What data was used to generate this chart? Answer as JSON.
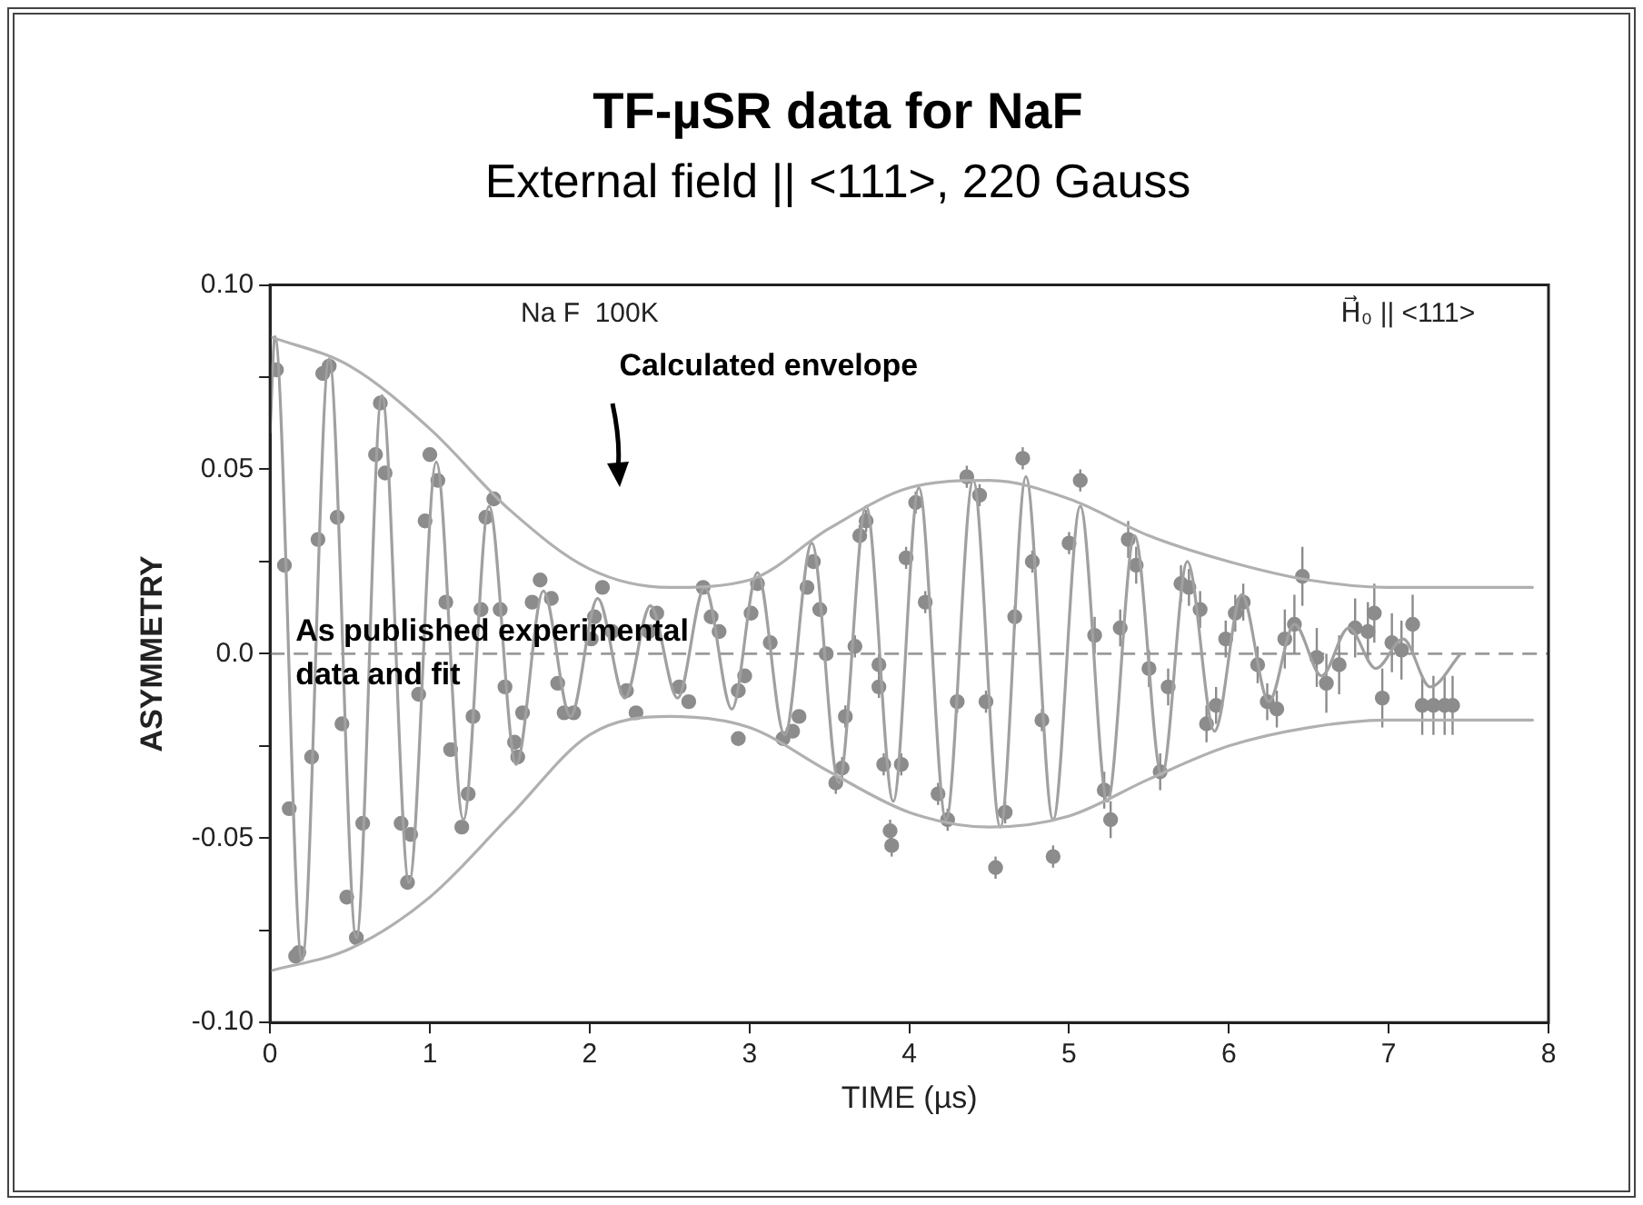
{
  "chart_data": {
    "type": "scatter",
    "title": "TF-µSR data for NaF",
    "subtitle": "External field || <111>, 220 Gauss",
    "xlabel": "TIME (µs)",
    "ylabel": "ASYMMETRY",
    "xlim": [
      0,
      8
    ],
    "xticks": [
      0,
      1,
      2,
      3,
      4,
      5,
      6,
      7,
      8
    ],
    "ylim": [
      -0.1,
      0.1
    ],
    "yticks": [
      {
        "value": -0.1,
        "label": "-0.10"
      },
      {
        "value": -0.075,
        "label": null
      },
      {
        "value": -0.05,
        "label": "-0.05"
      },
      {
        "value": -0.025,
        "label": null
      },
      {
        "value": 0,
        "label": "0.0"
      },
      {
        "value": 0.025,
        "label": null
      },
      {
        "value": 0.05,
        "label": "0.05"
      },
      {
        "value": 0.075,
        "label": null
      },
      {
        "value": 0.1,
        "label": "0.10"
      }
    ],
    "grid": false,
    "legend": false,
    "ref_lines": [
      {
        "axis": "y",
        "value": 0,
        "color": "#9a9a9a",
        "line_style": "dashed"
      }
    ],
    "annotations": [
      "Na F  100K",
      "H⃗₀ || <111>",
      "As published experimental data and fit",
      "Calculated envelope"
    ],
    "series": [
      {
        "type": "line",
        "color": "#b0b0b0",
        "marker": "none",
        "x": [
          0,
          0.5,
          1,
          1.5,
          2,
          2.5,
          3,
          3.5,
          4,
          4.5,
          5,
          5.5,
          6,
          6.5,
          7,
          7.9
        ],
        "values": [
          0.086,
          0.078,
          0.061,
          0.039,
          0.023,
          0.018,
          0.02,
          0.034,
          0.045,
          0.047,
          0.042,
          0.032,
          0.025,
          0.02,
          0.018,
          0.018
        ]
      },
      {
        "type": "line",
        "color": "#b0b0b0",
        "marker": "none",
        "x": [
          0,
          0.5,
          1,
          1.5,
          2,
          2.5,
          3,
          3.5,
          4,
          4.5,
          5,
          5.5,
          6,
          6.5,
          7,
          7.9
        ],
        "values": [
          -0.086,
          -0.08,
          -0.066,
          -0.044,
          -0.022,
          -0.017,
          -0.02,
          -0.032,
          -0.043,
          -0.047,
          -0.044,
          -0.034,
          -0.025,
          -0.02,
          -0.018,
          -0.018
        ]
      },
      {
        "type": "line",
        "color": "#a0a0a0",
        "marker": "none",
        "x": [
          0,
          0.03,
          0.2,
          0.37,
          0.54,
          0.7,
          0.87,
          1.04,
          1.21,
          1.37,
          1.54,
          1.71,
          1.88,
          2.05,
          2.22,
          2.38,
          2.55,
          2.72,
          2.89,
          3.05,
          3.22,
          3.39,
          3.56,
          3.73,
          3.9,
          4.06,
          4.23,
          4.4,
          4.57,
          4.73,
          4.9,
          5.07,
          5.24,
          5.41,
          5.58,
          5.74,
          5.91,
          6.08,
          6.25,
          6.41,
          6.58,
          6.75,
          6.92,
          7.09,
          7.26,
          7.45
        ],
        "values": [
          0.06,
          0.086,
          -0.083,
          0.08,
          -0.077,
          0.07,
          -0.062,
          0.052,
          -0.045,
          0.04,
          -0.03,
          0.017,
          -0.017,
          0.015,
          -0.012,
          0.013,
          -0.012,
          0.018,
          -0.015,
          0.022,
          -0.022,
          0.03,
          -0.035,
          0.04,
          -0.04,
          0.045,
          -0.045,
          0.047,
          -0.047,
          0.048,
          -0.045,
          0.04,
          -0.04,
          0.032,
          -0.033,
          0.025,
          -0.021,
          0.016,
          -0.013,
          0.008,
          -0.006,
          0.007,
          -0.004,
          0.004,
          -0.009,
          0.0
        ]
      },
      {
        "type": "scatter",
        "color": "#8c8c8c",
        "marker": "circle",
        "x": [
          0.04,
          0.09,
          0.12,
          0.16,
          0.18,
          0.26,
          0.3,
          0.33,
          0.37,
          0.42,
          0.45,
          0.48,
          0.54,
          0.58,
          0.66,
          0.69,
          0.72,
          0.82,
          0.86,
          0.88,
          0.93,
          0.97,
          1.0,
          1.05,
          1.1,
          1.13,
          1.2,
          1.24,
          1.27,
          1.32,
          1.35,
          1.4,
          1.44,
          1.47,
          1.53,
          1.55,
          1.58,
          1.64,
          1.69,
          1.76,
          1.8,
          1.84,
          1.9,
          2.01,
          2.03,
          2.08,
          2.14,
          2.23,
          2.29,
          2.37,
          2.42,
          2.56,
          2.62,
          2.71,
          2.76,
          2.81,
          2.93,
          2.93,
          2.97,
          3.01,
          3.05,
          3.13,
          3.21,
          3.27,
          3.31,
          3.36,
          3.4,
          3.44,
          3.48
        ],
        "values": [
          0.077,
          0.024,
          -0.042,
          -0.082,
          -0.081,
          -0.028,
          0.031,
          0.076,
          0.078,
          0.037,
          -0.019,
          -0.066,
          -0.077,
          -0.046,
          0.054,
          0.068,
          0.049,
          -0.046,
          -0.062,
          -0.049,
          -0.011,
          0.036,
          0.054,
          0.047,
          0.014,
          -0.026,
          -0.047,
          -0.038,
          -0.017,
          0.012,
          0.037,
          0.042,
          0.012,
          -0.009,
          -0.024,
          -0.028,
          -0.016,
          0.014,
          0.02,
          0.015,
          -0.008,
          -0.016,
          -0.016,
          0.004,
          0.01,
          0.018,
          0.006,
          -0.01,
          -0.016,
          0.006,
          0.011,
          -0.009,
          -0.013,
          0.018,
          0.01,
          0.006,
          -0.01,
          -0.023,
          -0.006,
          0.011,
          0.019,
          0.003,
          -0.023,
          -0.021,
          -0.017,
          0.018,
          0.025,
          0.012,
          0.0
        ]
      },
      {
        "type": "scatter",
        "color": "#8c8c8c",
        "marker": "circle",
        "x": [
          3.54,
          3.58,
          3.6,
          3.66,
          3.69,
          3.73,
          3.81,
          3.81,
          3.84,
          3.88,
          3.89,
          3.95,
          3.98,
          4.04,
          4.1,
          4.18,
          4.24,
          4.3,
          4.36,
          4.44,
          4.48,
          4.54,
          4.6,
          4.66,
          4.71,
          4.77,
          4.83,
          4.9,
          5.0,
          5.07,
          5.16,
          5.22,
          5.26,
          5.32,
          5.37,
          5.42,
          5.5,
          5.57,
          5.62,
          5.7,
          5.75,
          5.82,
          5.86,
          5.92,
          5.98,
          6.04,
          6.09,
          6.18,
          6.24,
          6.3,
          6.35,
          6.41,
          6.46,
          6.55,
          6.61,
          6.69,
          6.79,
          6.87,
          6.91,
          6.96,
          7.02,
          7.08,
          7.15,
          7.21,
          7.28,
          7.35,
          7.4
        ],
        "values": [
          -0.035,
          -0.031,
          -0.017,
          0.002,
          0.032,
          0.036,
          -0.003,
          -0.009,
          -0.03,
          -0.048,
          -0.052,
          -0.03,
          0.026,
          0.041,
          0.014,
          -0.038,
          -0.045,
          -0.013,
          0.048,
          0.043,
          -0.013,
          -0.058,
          -0.043,
          0.01,
          0.053,
          0.025,
          -0.018,
          -0.055,
          0.03,
          0.047,
          0.005,
          -0.037,
          -0.045,
          0.007,
          0.031,
          0.024,
          -0.004,
          -0.032,
          -0.009,
          0.019,
          0.018,
          0.012,
          -0.019,
          -0.014,
          0.004,
          0.011,
          0.014,
          -0.003,
          -0.013,
          -0.015,
          0.004,
          0.008,
          0.021,
          -0.001,
          -0.008,
          -0.003,
          0.007,
          0.006,
          0.011,
          -0.012,
          0.003,
          0.001,
          0.008,
          -0.014,
          -0.014,
          -0.014,
          -0.014
        ],
        "errors": [
          0.003,
          0.003,
          0.003,
          0.003,
          0.003,
          0.003,
          0.003,
          0.003,
          0.003,
          0.003,
          0.003,
          0.003,
          0.003,
          0.003,
          0.003,
          0.003,
          0.003,
          0.003,
          0.003,
          0.003,
          0.003,
          0.003,
          0.003,
          0.003,
          0.003,
          0.003,
          0.003,
          0.003,
          0.003,
          0.003,
          0.005,
          0.005,
          0.005,
          0.005,
          0.005,
          0.005,
          0.005,
          0.005,
          0.005,
          0.005,
          0.005,
          0.005,
          0.005,
          0.005,
          0.005,
          0.005,
          0.005,
          0.005,
          0.005,
          0.005,
          0.008,
          0.008,
          0.008,
          0.008,
          0.008,
          0.008,
          0.008,
          0.008,
          0.008,
          0.008,
          0.008,
          0.008,
          0.008,
          0.008,
          0.008,
          0.008,
          0.008
        ]
      }
    ]
  }
}
